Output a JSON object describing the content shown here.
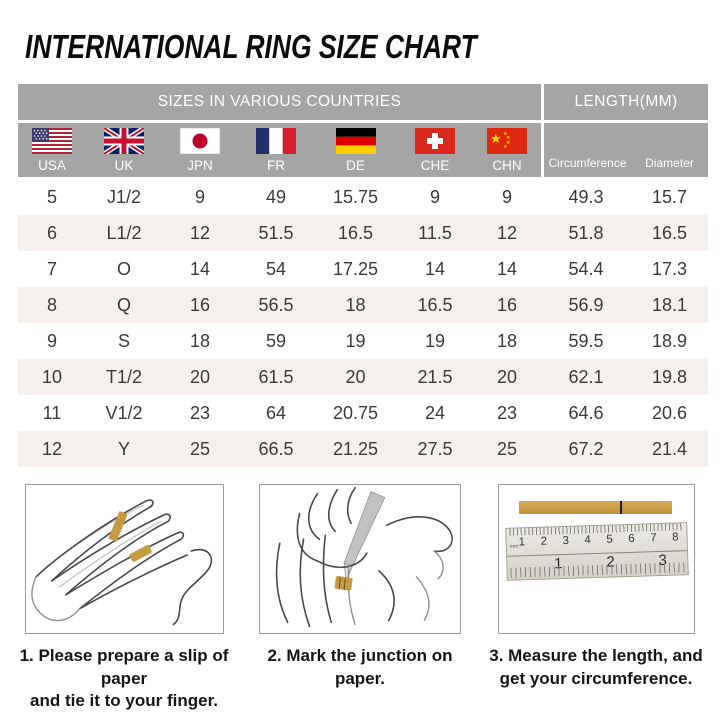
{
  "page_title": "INTERNATIONAL RING SIZE CHART",
  "table": {
    "header": {
      "countries": "SIZES IN VARIOUS COUNTRIES",
      "length": "LENGTH(MM)"
    },
    "country_columns": [
      {
        "code": "USA",
        "flag": "usa-flag-icon"
      },
      {
        "code": "UK",
        "flag": "uk-flag-icon"
      },
      {
        "code": "JPN",
        "flag": "japan-flag-icon"
      },
      {
        "code": "FR",
        "flag": "france-flag-icon"
      },
      {
        "code": "DE",
        "flag": "germany-flag-icon"
      },
      {
        "code": "CHE",
        "flag": "switzerland-flag-icon"
      },
      {
        "code": "CHN",
        "flag": "china-flag-icon"
      }
    ],
    "length_columns": [
      "Circumference",
      "Diameter"
    ],
    "rows": [
      [
        "5",
        "J1/2",
        "9",
        "49",
        "15.75",
        "9",
        "9",
        "49.3",
        "15.7"
      ],
      [
        "6",
        "L1/2",
        "12",
        "51.5",
        "16.5",
        "11.5",
        "12",
        "51.8",
        "16.5"
      ],
      [
        "7",
        "O",
        "14",
        "54",
        "17.25",
        "14",
        "14",
        "54.4",
        "17.3"
      ],
      [
        "8",
        "Q",
        "16",
        "56.5",
        "18",
        "16.5",
        "16",
        "56.9",
        "18.1"
      ],
      [
        "9",
        "S",
        "18",
        "59",
        "19",
        "19",
        "18",
        "59.5",
        "18.9"
      ],
      [
        "10",
        "T1/2",
        "20",
        "61.5",
        "20",
        "21.5",
        "20",
        "62.1",
        "19.8"
      ],
      [
        "11",
        "V1/2",
        "23",
        "64",
        "20.75",
        "24",
        "23",
        "64.6",
        "20.6"
      ],
      [
        "12",
        "Y",
        "25",
        "66.5",
        "21.25",
        "27.5",
        "25",
        "67.2",
        "21.4"
      ]
    ]
  },
  "instructions": [
    {
      "lines": [
        "1. Please prepare a slip of paper",
        "and tie it to your finger."
      ]
    },
    {
      "lines": [
        "2. Mark the junction on paper."
      ]
    },
    {
      "lines": [
        "3. Measure the length, and",
        "get your circumference."
      ]
    }
  ],
  "ruler": {
    "unit_label": "mm",
    "cm_numbers": [
      "1",
      "2",
      "3",
      "4",
      "5",
      "6",
      "7",
      "8"
    ],
    "inch_numbers": [
      "1",
      "2",
      "3"
    ]
  },
  "colors": {
    "header_gray": "#a5a5a5",
    "row_alt": "#f5f0ed",
    "paper_gold": "#c59b43",
    "text_dark": "#3a3a3a",
    "panel_border": "#9a9a9a"
  },
  "chart_data": {
    "type": "table",
    "title": "INTERNATIONAL RING SIZE CHART",
    "columns": [
      "USA",
      "UK",
      "JPN",
      "FR",
      "DE",
      "CHE",
      "CHN",
      "Circumference (mm)",
      "Diameter (mm)"
    ],
    "rows": [
      [
        "5",
        "J1/2",
        "9",
        "49",
        "15.75",
        "9",
        "9",
        "49.3",
        "15.7"
      ],
      [
        "6",
        "L1/2",
        "12",
        "51.5",
        "16.5",
        "11.5",
        "12",
        "51.8",
        "16.5"
      ],
      [
        "7",
        "O",
        "14",
        "54",
        "17.25",
        "14",
        "14",
        "54.4",
        "17.3"
      ],
      [
        "8",
        "Q",
        "16",
        "56.5",
        "18",
        "16.5",
        "16",
        "56.9",
        "18.1"
      ],
      [
        "9",
        "S",
        "18",
        "59",
        "19",
        "19",
        "18",
        "59.5",
        "18.9"
      ],
      [
        "10",
        "T1/2",
        "20",
        "61.5",
        "20",
        "21.5",
        "20",
        "62.1",
        "19.8"
      ],
      [
        "11",
        "V1/2",
        "23",
        "64",
        "20.75",
        "24",
        "23",
        "64.6",
        "20.6"
      ],
      [
        "12",
        "Y",
        "25",
        "66.5",
        "21.25",
        "27.5",
        "25",
        "67.2",
        "21.4"
      ]
    ]
  }
}
